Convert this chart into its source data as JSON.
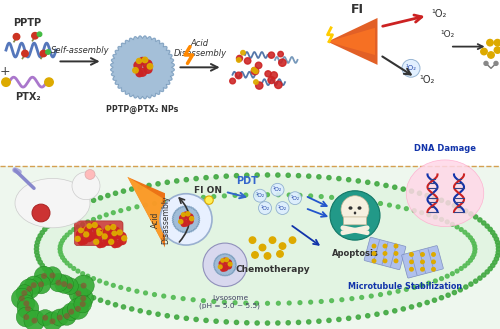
{
  "bg_color": "#ffffff",
  "bottom_bg": "#e8f5e9",
  "divider_color": "#d4a050",
  "labels": {
    "PPTP": "PPTP",
    "PTX2": "PTX₂",
    "self_assembly": "Self-assembly",
    "acid_disassembly": "Acid\nDisassembly",
    "NPs_label": "PPTP@PTX₂ NPs",
    "FI": "FI",
    "singlet_o2": "¹O₂",
    "singlet_o2_2": "¹O₂",
    "PDT": "PDT",
    "FI_ON": "FI ON",
    "Acid_dis": "Acid\nDisassembly",
    "Chemotherapy": "Chemotherapy",
    "Lysosome": "Lysosome\n(pH = 5.0 ~ 5.5)",
    "Apoptosis": "Apoptosis",
    "DNA_Damage": "DNA Damage",
    "Microtubule": "Microtubule Stabilization"
  },
  "colors": {
    "shell_blue": "#8ab0d0",
    "core_red": "#cc2222",
    "core_yellow": "#ddaa00",
    "green_dots": "#44aa44",
    "orange_cone": "#ee7700",
    "skull_teal": "#229988",
    "dna_blue": "#1133aa",
    "micro_blue": "#8899cc",
    "pink_nucleus": "#ffccdd",
    "lyso_gray": "#c0c0d8"
  }
}
